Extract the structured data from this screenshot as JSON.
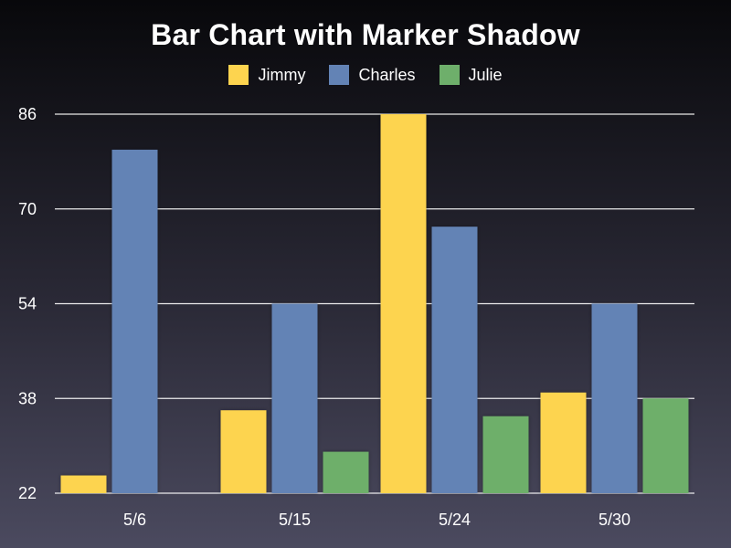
{
  "chart_data": {
    "type": "bar",
    "title": "Bar Chart with Marker Shadow",
    "xlabel": "",
    "ylabel": "",
    "categories": [
      "5/6",
      "5/15",
      "5/24",
      "5/30"
    ],
    "series": [
      {
        "name": "Jimmy",
        "color": "#fdd44f",
        "values": [
          25,
          36,
          86,
          39
        ]
      },
      {
        "name": "Charles",
        "color": "#6383b5",
        "values": [
          80,
          54,
          67,
          54
        ]
      },
      {
        "name": "Julie",
        "color": "#6eaf6b",
        "values": [
          22,
          29,
          35,
          38
        ]
      }
    ],
    "ylim": [
      22,
      86
    ],
    "yticks": [
      22,
      38,
      54,
      70,
      86
    ],
    "grid": true,
    "legend_position": "top"
  }
}
